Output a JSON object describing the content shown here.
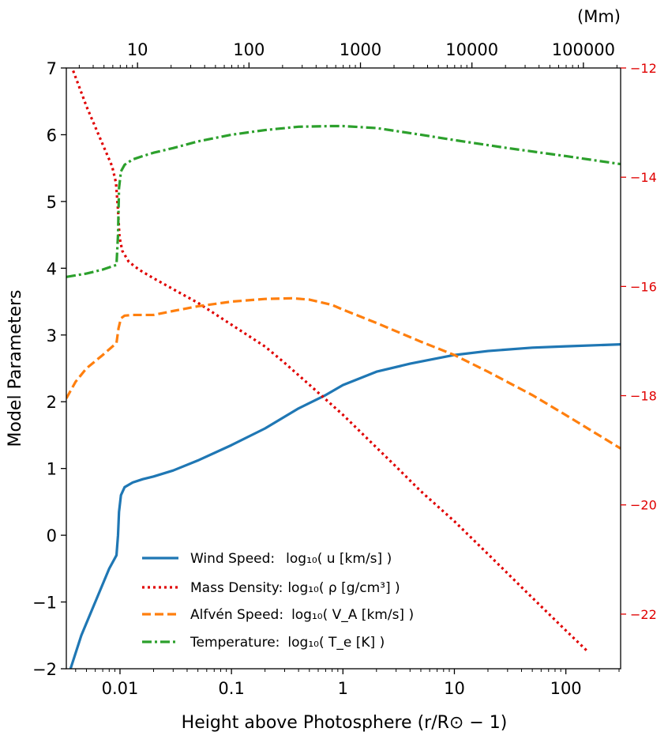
{
  "chart_data": {
    "type": "line",
    "xlabel": "Height above Photosphere (r/R⊙ − 1)",
    "ylabel": "Model Parameters",
    "x_scale": "log",
    "xlim": [
      0.0033,
      310
    ],
    "ylim": [
      -2,
      7
    ],
    "x_ticks": [
      0.01,
      0.1,
      1,
      10,
      100
    ],
    "x_tick_labels": [
      "0.01",
      "0.1",
      "1",
      "10",
      "100"
    ],
    "y_ticks": [
      -2,
      -1,
      0,
      1,
      2,
      3,
      4,
      5,
      6,
      7
    ],
    "y_tick_labels": [
      "−2",
      "−1",
      "0",
      "1",
      "2",
      "3",
      "4",
      "5",
      "6",
      "7"
    ],
    "top_axis": {
      "unit_label": "(Mm)",
      "ticks": [
        10,
        100,
        1000,
        10000,
        100000
      ],
      "tick_labels": [
        "10",
        "100",
        "1000",
        "10000",
        "100000"
      ],
      "mm_per_unit": 696
    },
    "right_axis": {
      "ylim": [
        -23,
        -12
      ],
      "ticks": [
        -12,
        -14,
        -16,
        -18,
        -20,
        -22
      ],
      "tick_labels": [
        "−12",
        "−14",
        "−16",
        "−18",
        "−20",
        "−22"
      ],
      "color": "#e00000"
    },
    "legend": {
      "placement": "lower-center"
    },
    "series": [
      {
        "name": "Wind Speed:",
        "formula": "log₁₀( u [km/s] )",
        "color": "#1f77b4",
        "style": "solid",
        "axis": "left",
        "x": [
          0.0036,
          0.0045,
          0.006,
          0.008,
          0.0093,
          0.0096,
          0.0098,
          0.0102,
          0.011,
          0.013,
          0.016,
          0.02,
          0.03,
          0.05,
          0.1,
          0.2,
          0.4,
          0.7,
          1,
          2,
          4,
          7,
          10,
          20,
          50,
          100,
          310
        ],
        "values": [
          -2.0,
          -1.5,
          -1.0,
          -0.5,
          -0.3,
          0.0,
          0.35,
          0.6,
          0.72,
          0.79,
          0.84,
          0.88,
          0.97,
          1.12,
          1.35,
          1.6,
          1.9,
          2.1,
          2.25,
          2.45,
          2.57,
          2.65,
          2.7,
          2.76,
          2.81,
          2.83,
          2.86
        ]
      },
      {
        "name": "Mass Density:",
        "formula": "log₁₀( ρ [g/cm³] )",
        "color": "#e00000",
        "style": "dotted",
        "axis": "right",
        "x": [
          0.0038,
          0.005,
          0.007,
          0.0085,
          0.0092,
          0.0096,
          0.0099,
          0.0105,
          0.012,
          0.015,
          0.02,
          0.03,
          0.05,
          0.1,
          0.2,
          0.3,
          0.5,
          1,
          2,
          3,
          5,
          10,
          20,
          50,
          100,
          160
        ],
        "values": [
          -12.05,
          -12.7,
          -13.4,
          -13.8,
          -14.1,
          -14.6,
          -15.1,
          -15.35,
          -15.55,
          -15.7,
          -15.85,
          -16.05,
          -16.3,
          -16.7,
          -17.1,
          -17.4,
          -17.8,
          -18.35,
          -18.95,
          -19.3,
          -19.75,
          -20.3,
          -20.9,
          -21.7,
          -22.3,
          -22.7
        ]
      },
      {
        "name": "Alfvén Speed:",
        "formula": "log₁₀( V_A [km/s] )",
        "color": "#ff7f0e",
        "style": "dashed",
        "axis": "left",
        "x": [
          0.0033,
          0.004,
          0.005,
          0.007,
          0.0093,
          0.0097,
          0.0102,
          0.011,
          0.013,
          0.02,
          0.03,
          0.05,
          0.1,
          0.2,
          0.35,
          0.5,
          0.8,
          1,
          2,
          5,
          10,
          20,
          50,
          100,
          310
        ],
        "values": [
          2.05,
          2.3,
          2.5,
          2.7,
          2.88,
          3.1,
          3.25,
          3.29,
          3.3,
          3.3,
          3.36,
          3.43,
          3.5,
          3.54,
          3.55,
          3.53,
          3.45,
          3.38,
          3.18,
          2.9,
          2.7,
          2.45,
          2.1,
          1.8,
          1.3
        ]
      },
      {
        "name": "Temperature:",
        "formula": "log₁₀( T_e [K] )",
        "color": "#2ca02c",
        "style": "dashdot",
        "axis": "left",
        "x": [
          0.0033,
          0.005,
          0.007,
          0.0093,
          0.0096,
          0.0098,
          0.0102,
          0.011,
          0.013,
          0.016,
          0.02,
          0.03,
          0.05,
          0.1,
          0.2,
          0.4,
          0.8,
          1,
          2,
          5,
          10,
          30,
          100,
          310
        ],
        "values": [
          3.87,
          3.92,
          3.98,
          4.05,
          4.5,
          5.2,
          5.45,
          5.55,
          5.63,
          5.68,
          5.73,
          5.8,
          5.9,
          6.0,
          6.07,
          6.12,
          6.13,
          6.13,
          6.1,
          6.0,
          5.92,
          5.8,
          5.68,
          5.56
        ]
      }
    ]
  }
}
